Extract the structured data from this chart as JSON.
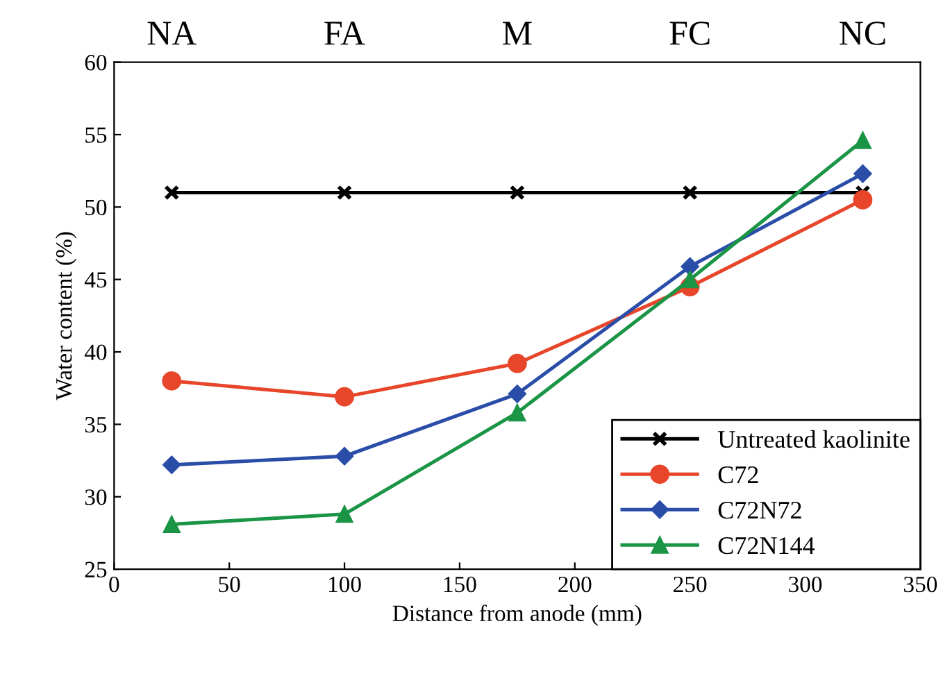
{
  "chart_data": {
    "type": "line",
    "xlabel": "Distance from anode (mm)",
    "ylabel": "Water content (%)",
    "x": [
      25,
      100,
      175,
      250,
      325
    ],
    "series": [
      {
        "name": "Untreated kaolinite",
        "color": "#000000",
        "marker": "cross",
        "values": [
          51,
          51,
          51,
          51,
          51
        ]
      },
      {
        "name": "C72",
        "color": "#e8462a",
        "marker": "circle",
        "values": [
          38.0,
          36.9,
          39.2,
          44.5,
          50.5
        ]
      },
      {
        "name": "C72N72",
        "color": "#2a4ea8",
        "marker": "diamond",
        "values": [
          32.2,
          32.8,
          37.1,
          45.9,
          52.3
        ]
      },
      {
        "name": "C72N144",
        "color": "#1a9445",
        "marker": "triangle",
        "values": [
          28.1,
          28.8,
          35.8,
          45.0,
          54.6
        ]
      }
    ],
    "xlim": [
      0,
      350
    ],
    "xticks": [
      0,
      50,
      100,
      150,
      200,
      250,
      300,
      350
    ],
    "annotations": [
      "NA",
      "FA",
      "M",
      "FC",
      "NC"
    ],
    "ylim": [
      25,
      60
    ],
    "yticks": [
      25,
      30,
      35,
      40,
      45,
      50,
      55,
      60
    ],
    "grid": false,
    "legend": "bottom right",
    "line_style": "solid"
  }
}
